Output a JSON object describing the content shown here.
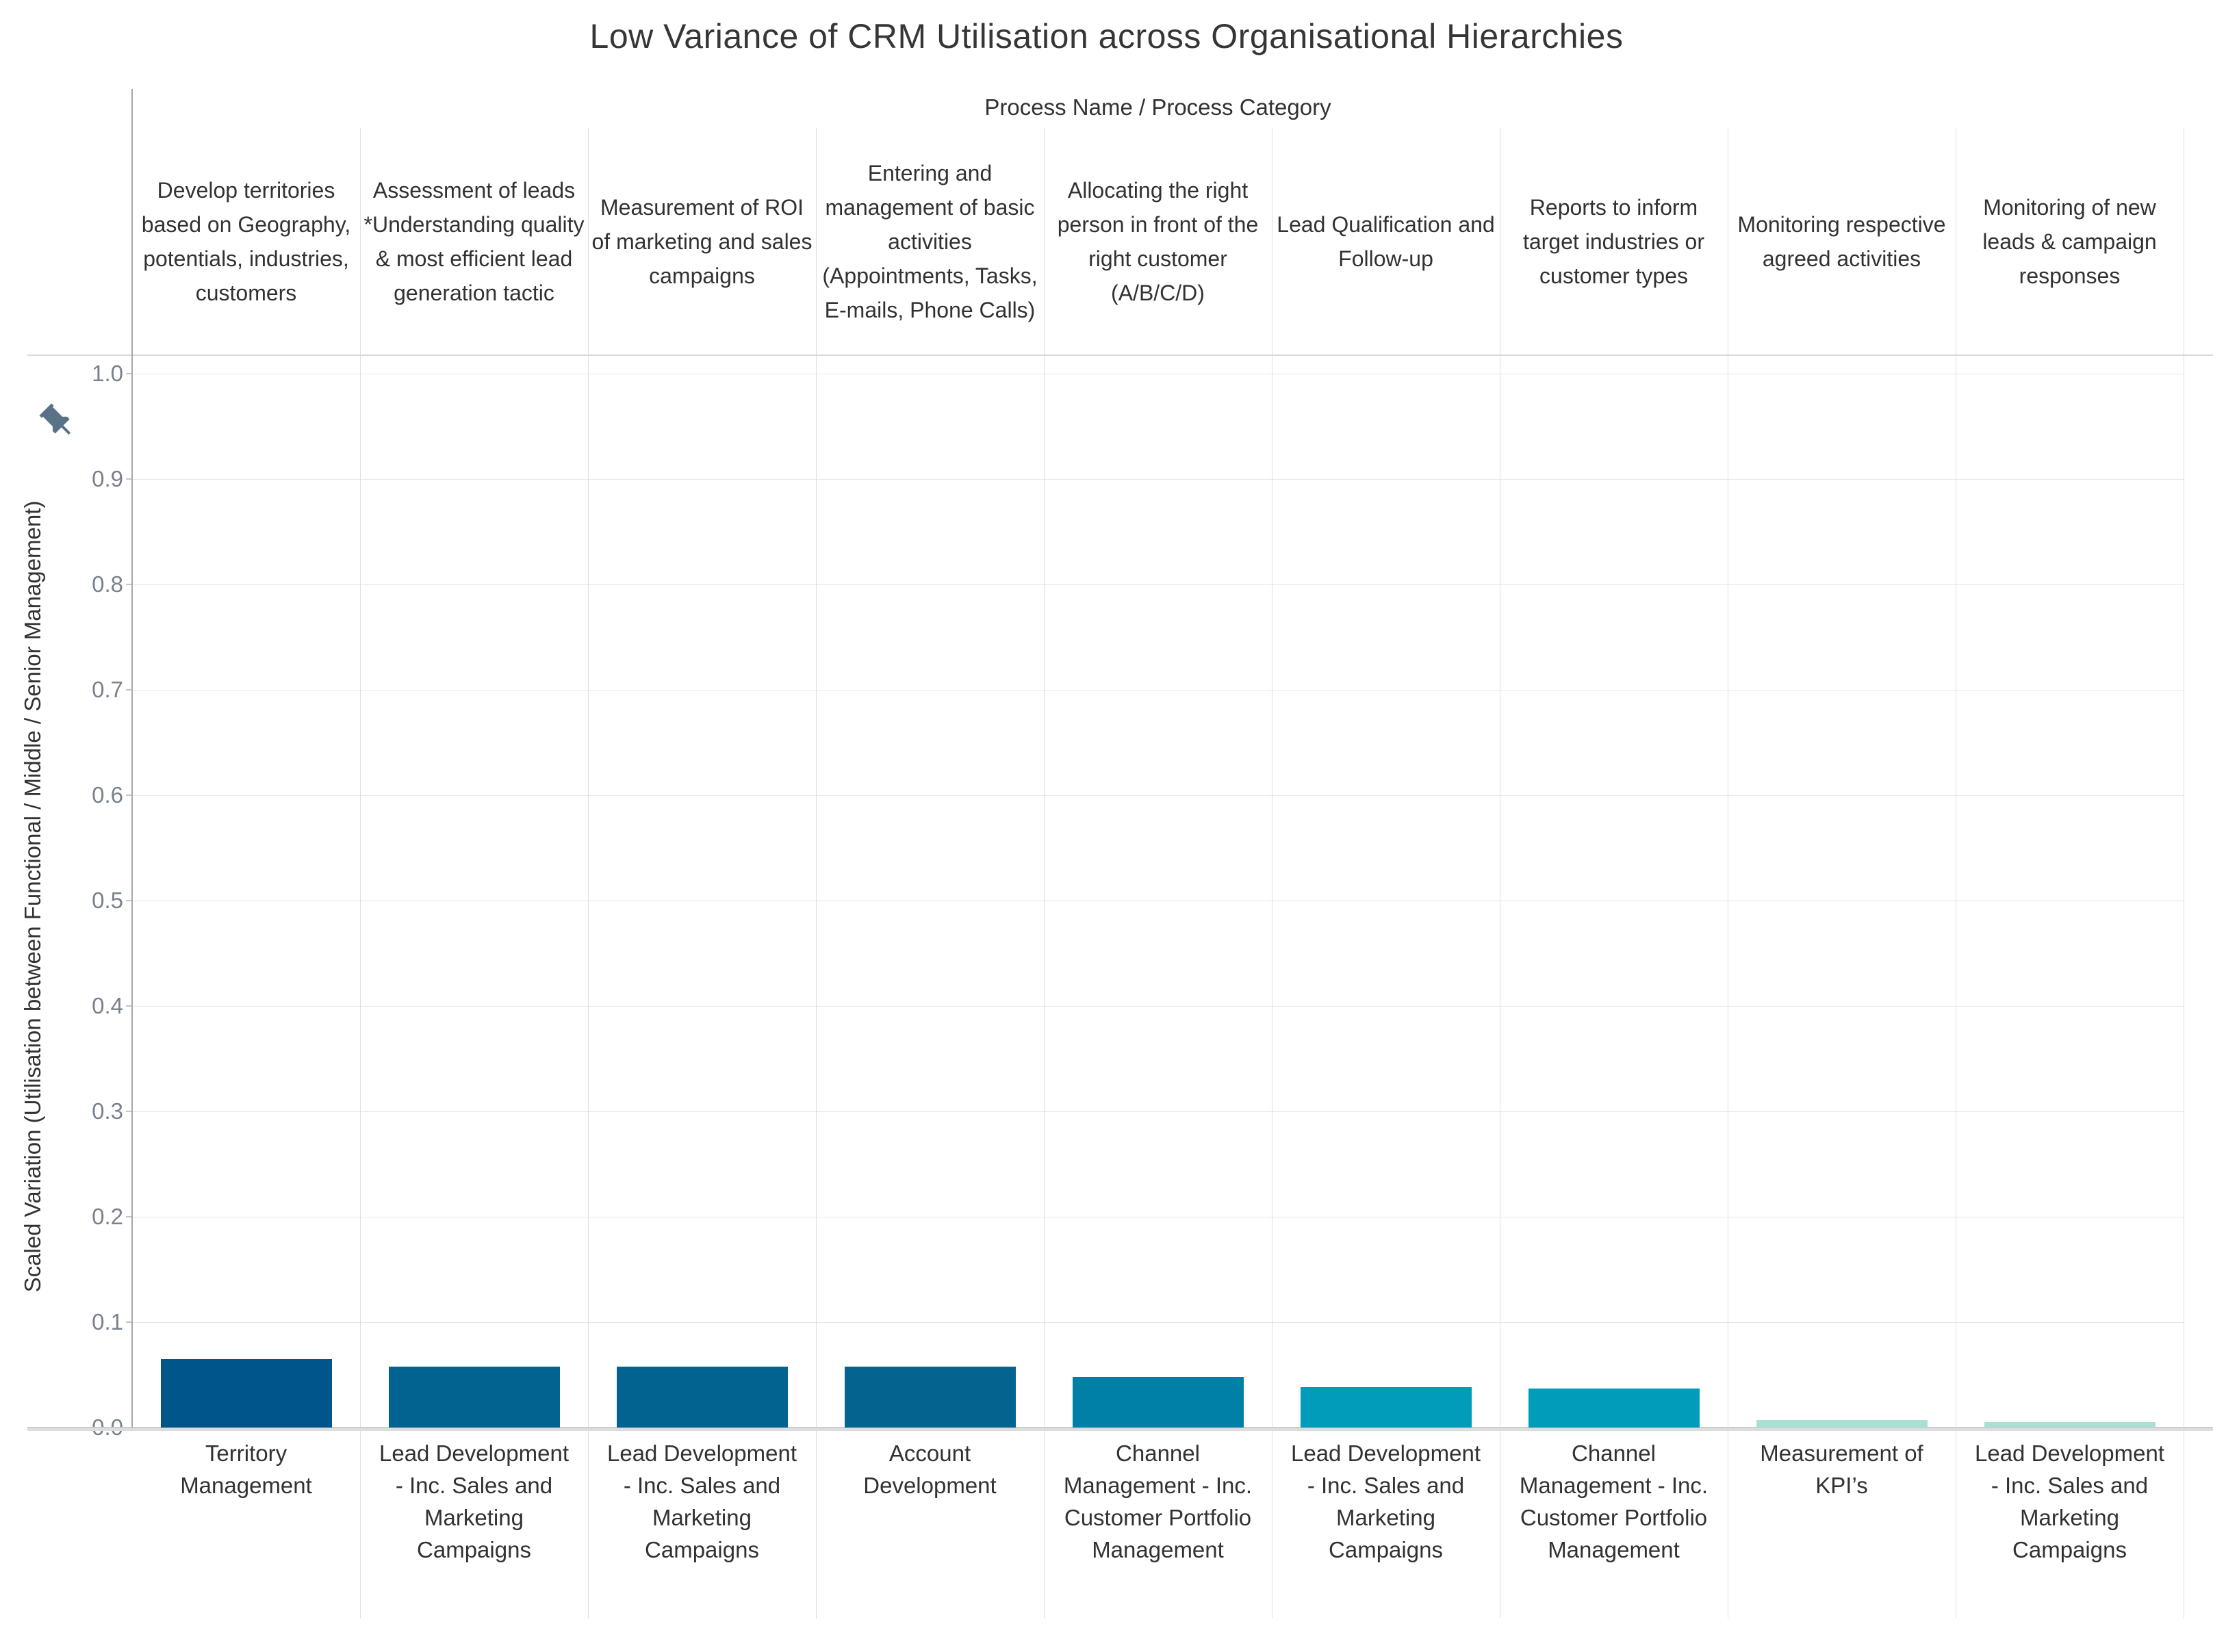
{
  "chart_data": {
    "type": "bar",
    "title": "Low Variance of CRM Utilisation across Organisational Hierarchies",
    "xlabel": "Process Name / Process Category",
    "ylabel": "Scaled Variation (Utilisation between Functional / Middle / Senior Management)",
    "ylim": [
      0,
      1
    ],
    "grid": true,
    "legend": false,
    "column_headers": [
      "Develop territories based on Geography, potentials, industries, customers",
      "Assessment of leads *Understanding quality & most efficient lead generation tactic",
      "Measurement of ROI of marketing and sales campaigns",
      "Entering and management of basic activities (Appointments, Tasks, E-mails, Phone Calls)",
      "Allocating the right person in front of the right customer (A/B/C/D)",
      "Lead Qualification and Follow-up",
      "Reports to inform target industries or customer types",
      "Monitoring respective agreed activities",
      "Monitoring of new leads & campaign responses"
    ],
    "categories": [
      "Territory Management",
      "Lead Development - Inc. Sales and Marketing Campaigns",
      "Lead Development - Inc. Sales and Marketing Campaigns",
      "Account Development",
      "Channel Management - Inc. Customer Portfolio Management",
      "Lead Development - Inc. Sales and Marketing Campaigns",
      "Channel Management - Inc. Customer Portfolio Management",
      "Measurement of KPI’s",
      "Lead Development - Inc. Sales and Marketing Campaigns"
    ],
    "values": [
      0.065,
      0.058,
      0.058,
      0.058,
      0.048,
      0.038,
      0.037,
      0.007,
      0.005
    ],
    "bar_colors": [
      "#00568a",
      "#036390",
      "#036390",
      "#04648f",
      "#0080a6",
      "#009cba",
      "#009cba",
      "#a8e0d4",
      "#aadfd2"
    ]
  },
  "y_axis": {
    "ticks": [
      "0.0",
      "0.1",
      "0.2",
      "0.3",
      "0.4",
      "0.5",
      "0.6",
      "0.7",
      "0.8",
      "0.9",
      "1.0"
    ]
  },
  "icons": {
    "pin": "pushpin-icon",
    "pin_color": "#5a7287"
  }
}
